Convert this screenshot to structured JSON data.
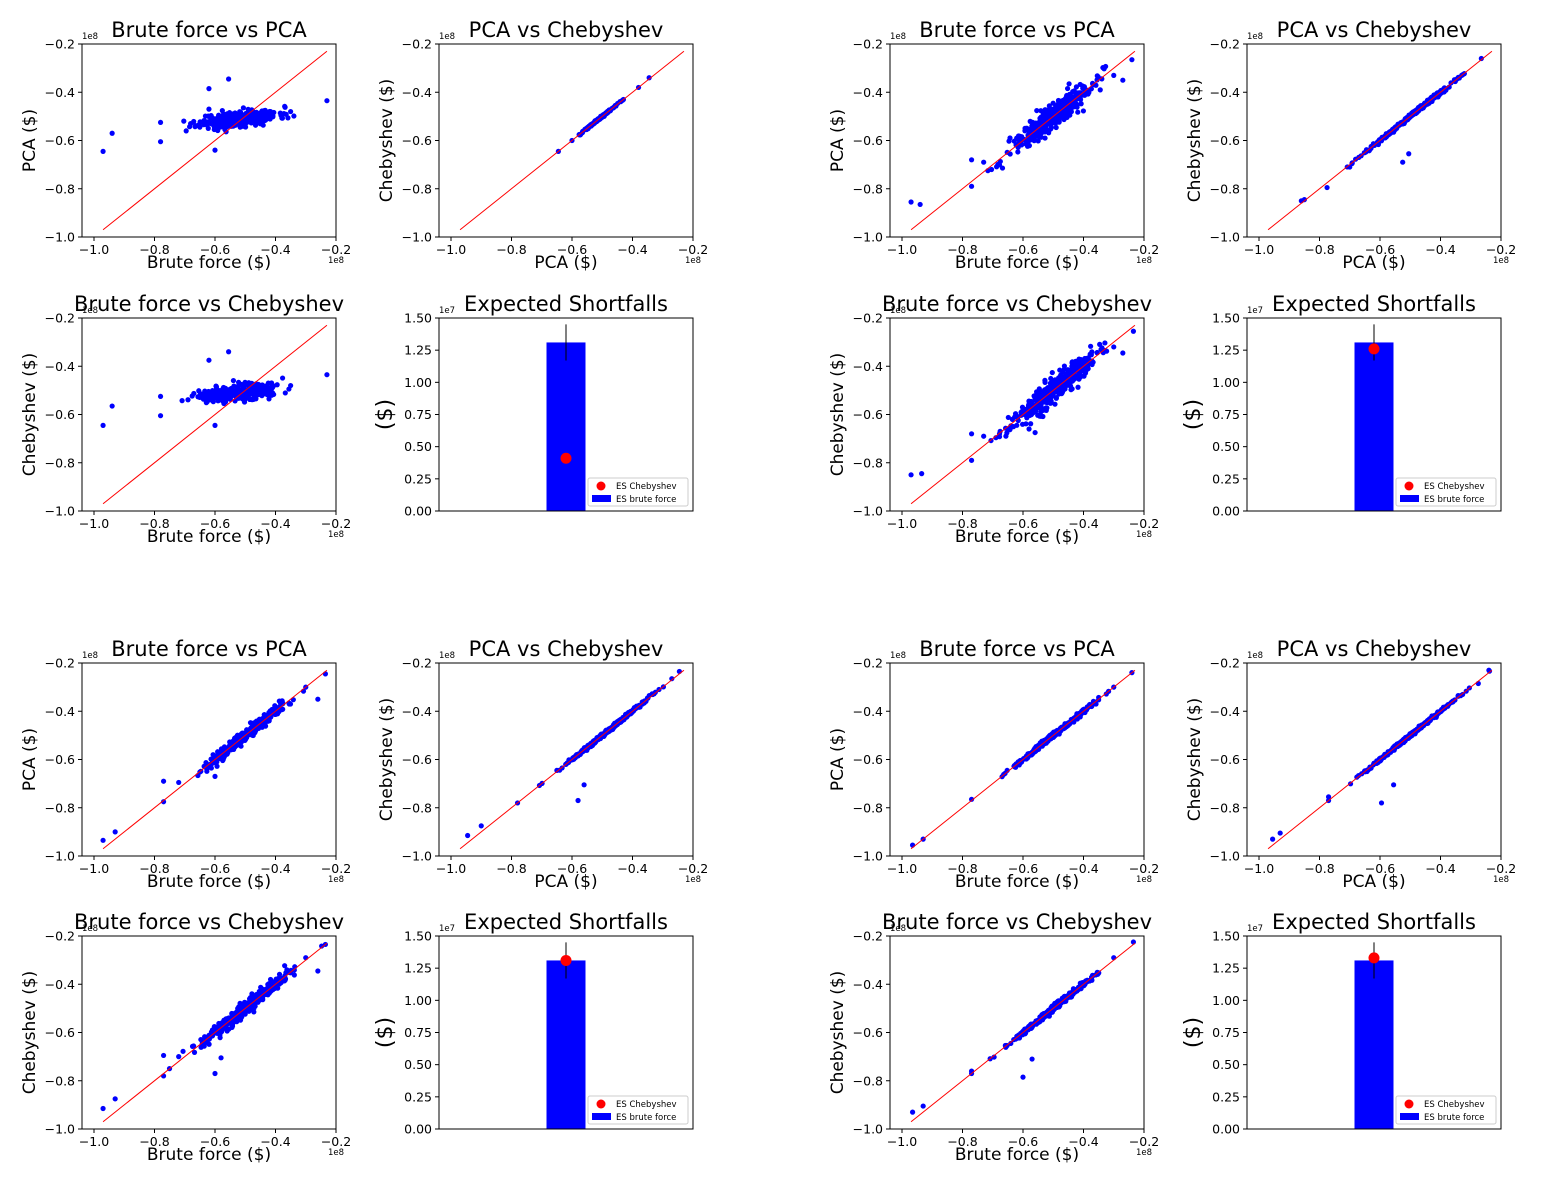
{
  "colors": {
    "scatter": "#0000ff",
    "diag": "#ff0000",
    "bar": "#0000ff",
    "dot": "#ff0000",
    "errbar": "#000000"
  },
  "chart_data": [
    {
      "type": "scatter",
      "panel": "g1-bf-pca",
      "title": "Brute force vs PCA",
      "xlabel": "Brute force ($)",
      "ylabel": "PCA ($)",
      "xlim": [
        -1.0,
        -0.2
      ],
      "ylim": [
        -1.0,
        -0.2
      ],
      "offset_x": "1e8",
      "offset_y": "1e8",
      "xticks": [
        "−1.0",
        "−0.8",
        "−0.6",
        "−0.4",
        "−0.2"
      ],
      "yticks": [
        "−1.0",
        "−0.8",
        "−0.6",
        "−0.4",
        "−0.2"
      ],
      "diagonal": [
        [
          -0.97,
          -0.97
        ],
        [
          -0.23,
          -0.23
        ]
      ],
      "cloud": {
        "center": [
          -0.52,
          -0.51
        ],
        "slope": 0.13,
        "spread_x": 0.065,
        "spread_y": 0.016,
        "n": 320,
        "seed": 11
      },
      "outliers": [
        [
          -0.97,
          -0.645
        ],
        [
          -0.94,
          -0.57
        ],
        [
          -0.78,
          -0.525
        ],
        [
          -0.78,
          -0.605
        ],
        [
          -0.62,
          -0.385
        ],
        [
          -0.555,
          -0.345
        ],
        [
          -0.6,
          -0.64
        ],
        [
          -0.23,
          -0.435
        ],
        [
          -0.35,
          -0.48
        ],
        [
          -0.62,
          -0.47
        ]
      ]
    },
    {
      "type": "scatter",
      "panel": "g1-pca-cheb",
      "title": "PCA vs Chebyshev",
      "xlabel": "PCA ($)",
      "ylabel": "Chebyshev ($)",
      "xlim": [
        -1.0,
        -0.2
      ],
      "ylim": [
        -1.0,
        -0.2
      ],
      "offset_x": "1e8",
      "offset_y": "1e8",
      "xticks": [
        "−1.0",
        "−0.8",
        "−0.6",
        "−0.4",
        "−0.2"
      ],
      "yticks": [
        "−1.0",
        "−0.8",
        "−0.6",
        "−0.4",
        "−0.2"
      ],
      "diagonal": [
        [
          -0.97,
          -0.97
        ],
        [
          -0.23,
          -0.23
        ]
      ],
      "cloud": {
        "center": [
          -0.51,
          -0.51
        ],
        "slope": 1.0,
        "spread_x": 0.025,
        "spread_y": 0.002,
        "n": 240,
        "seed": 12
      },
      "outliers": [
        [
          -0.645,
          -0.645
        ],
        [
          -0.575,
          -0.575
        ],
        [
          -0.38,
          -0.38
        ],
        [
          -0.345,
          -0.34
        ],
        [
          -0.43,
          -0.43
        ],
        [
          -0.6,
          -0.6
        ]
      ]
    },
    {
      "type": "scatter",
      "panel": "g1-bf-cheb",
      "title": "Brute force vs Chebyshev",
      "xlabel": "Brute force ($)",
      "ylabel": "Chebyshev ($)",
      "xlim": [
        -1.0,
        -0.2
      ],
      "ylim": [
        -1.0,
        -0.2
      ],
      "offset_x": "1e8",
      "offset_y": "1e8",
      "xticks": [
        "−1.0",
        "−0.8",
        "−0.6",
        "−0.4",
        "−0.2"
      ],
      "yticks": [
        "−1.0",
        "−0.8",
        "−0.6",
        "−0.4",
        "−0.2"
      ],
      "diagonal": [
        [
          -0.97,
          -0.97
        ],
        [
          -0.23,
          -0.23
        ]
      ],
      "cloud": {
        "center": [
          -0.52,
          -0.51
        ],
        "slope": 0.13,
        "spread_x": 0.065,
        "spread_y": 0.016,
        "n": 320,
        "seed": 13
      },
      "outliers": [
        [
          -0.97,
          -0.645
        ],
        [
          -0.94,
          -0.565
        ],
        [
          -0.78,
          -0.525
        ],
        [
          -0.78,
          -0.605
        ],
        [
          -0.62,
          -0.375
        ],
        [
          -0.555,
          -0.34
        ],
        [
          -0.6,
          -0.645
        ],
        [
          -0.23,
          -0.435
        ],
        [
          -0.35,
          -0.48
        ]
      ]
    },
    {
      "type": "bar",
      "panel": "g1-es",
      "title": "Expected Shortfalls",
      "xlabel": "",
      "ylabel": "($)",
      "ylim": [
        0,
        1.5
      ],
      "offset_y": "1e7",
      "yticks": [
        "0.00",
        "0.25",
        "0.50",
        "0.75",
        "1.00",
        "1.25",
        "1.50"
      ],
      "bar_value": 1.31,
      "error": [
        1.17,
        1.45
      ],
      "point_value": 0.41,
      "legend": [
        "ES Chebyshev",
        "ES brute force"
      ],
      "legend_loc": "lower-right"
    },
    {
      "type": "scatter",
      "panel": "g2-bf-pca",
      "title": "Brute force vs PCA",
      "xlabel": "Brute force ($)",
      "ylabel": "PCA ($)",
      "xlim": [
        -1.0,
        -0.2
      ],
      "ylim": [
        -1.0,
        -0.2
      ],
      "offset_x": "1e8",
      "offset_y": "1e8",
      "xticks": [
        "−1.0",
        "−0.8",
        "−0.6",
        "−0.4",
        "−0.2"
      ],
      "yticks": [
        "−1.0",
        "−0.8",
        "−0.6",
        "−0.4",
        "−0.2"
      ],
      "diagonal": [
        [
          -0.97,
          -0.97
        ],
        [
          -0.23,
          -0.23
        ]
      ],
      "cloud": {
        "center": [
          -0.5,
          -0.5
        ],
        "slope": 1.0,
        "spread_x": 0.07,
        "spread_y": 0.025,
        "n": 380,
        "seed": 21
      },
      "outliers": [
        [
          -0.97,
          -0.855
        ],
        [
          -0.94,
          -0.865
        ],
        [
          -0.77,
          -0.79
        ],
        [
          -0.77,
          -0.68
        ],
        [
          -0.73,
          -0.69
        ],
        [
          -0.24,
          -0.265
        ],
        [
          -0.3,
          -0.33
        ],
        [
          -0.27,
          -0.35
        ]
      ]
    },
    {
      "type": "scatter",
      "panel": "g2-pca-cheb",
      "title": "PCA vs Chebyshev",
      "xlabel": "PCA ($)",
      "ylabel": "Chebyshev ($)",
      "xlim": [
        -1.0,
        -0.2
      ],
      "ylim": [
        -1.0,
        -0.2
      ],
      "offset_x": "1e8",
      "offset_y": "1e8",
      "xticks": [
        "−1.0",
        "−0.8",
        "−0.6",
        "−0.4",
        "−0.2"
      ],
      "yticks": [
        "−1.0",
        "−0.8",
        "−0.6",
        "−0.4",
        "−0.2"
      ],
      "diagonal": [
        [
          -0.97,
          -0.97
        ],
        [
          -0.23,
          -0.23
        ]
      ],
      "cloud": {
        "center": [
          -0.5,
          -0.5
        ],
        "slope": 1.0,
        "spread_x": 0.07,
        "spread_y": 0.004,
        "n": 320,
        "seed": 22
      },
      "outliers": [
        [
          -0.86,
          -0.85
        ],
        [
          -0.85,
          -0.845
        ],
        [
          -0.775,
          -0.795
        ],
        [
          -0.525,
          -0.69
        ],
        [
          -0.505,
          -0.655
        ],
        [
          -0.265,
          -0.26
        ],
        [
          -0.33,
          -0.33
        ],
        [
          -0.67,
          -0.67
        ],
        [
          -0.7,
          -0.71
        ]
      ]
    },
    {
      "type": "scatter",
      "panel": "g2-bf-cheb",
      "title": "Brute force vs Chebyshev",
      "xlabel": "Brute force ($)",
      "ylabel": "Chebyshev ($)",
      "xlim": [
        -1.0,
        -0.2
      ],
      "ylim": [
        -1.0,
        -0.2
      ],
      "offset_x": "1e8",
      "offset_y": "1e8",
      "xticks": [
        "−1.0",
        "−0.8",
        "−0.6",
        "−0.4",
        "−0.2"
      ],
      "yticks": [
        "−1.0",
        "−0.8",
        "−0.6",
        "−0.4",
        "−0.2"
      ],
      "diagonal": [
        [
          -0.97,
          -0.97
        ],
        [
          -0.23,
          -0.23
        ]
      ],
      "cloud": {
        "center": [
          -0.5,
          -0.5
        ],
        "slope": 1.0,
        "spread_x": 0.07,
        "spread_y": 0.025,
        "n": 380,
        "seed": 23
      },
      "outliers": [
        [
          -0.97,
          -0.85
        ],
        [
          -0.935,
          -0.845
        ],
        [
          -0.77,
          -0.79
        ],
        [
          -0.77,
          -0.68
        ],
        [
          -0.73,
          -0.69
        ],
        [
          -0.235,
          -0.255
        ],
        [
          -0.3,
          -0.32
        ],
        [
          -0.27,
          -0.345
        ],
        [
          -0.58,
          -0.66
        ],
        [
          -0.56,
          -0.675
        ]
      ]
    },
    {
      "type": "bar",
      "panel": "g2-es",
      "title": "Expected Shortfalls",
      "xlabel": "",
      "ylabel": "($)",
      "ylim": [
        0,
        1.5
      ],
      "offset_y": "1e7",
      "yticks": [
        "0.00",
        "0.25",
        "0.50",
        "0.75",
        "1.00",
        "1.25",
        "1.50"
      ],
      "bar_value": 1.31,
      "error": [
        1.17,
        1.45
      ],
      "point_value": 1.26,
      "legend": [
        "ES Chebyshev",
        "ES brute force"
      ],
      "legend_loc": "lower-right"
    },
    {
      "type": "scatter",
      "panel": "g3-bf-pca",
      "title": "Brute force vs PCA",
      "xlabel": "Brute force ($)",
      "ylabel": "PCA ($)",
      "xlim": [
        -1.0,
        -0.2
      ],
      "ylim": [
        -1.0,
        -0.2
      ],
      "offset_x": "1e8",
      "offset_y": "1e8",
      "xticks": [
        "−1.0",
        "−0.8",
        "−0.6",
        "−0.4",
        "−0.2"
      ],
      "yticks": [
        "−1.0",
        "−0.8",
        "−0.6",
        "−0.4",
        "−0.2"
      ],
      "diagonal": [
        [
          -0.97,
          -0.97
        ],
        [
          -0.23,
          -0.23
        ]
      ],
      "cloud": {
        "center": [
          -0.5,
          -0.5
        ],
        "slope": 1.0,
        "spread_x": 0.07,
        "spread_y": 0.012,
        "n": 340,
        "seed": 31
      },
      "outliers": [
        [
          -0.97,
          -0.935
        ],
        [
          -0.93,
          -0.9
        ],
        [
          -0.77,
          -0.775
        ],
        [
          -0.77,
          -0.69
        ],
        [
          -0.72,
          -0.695
        ],
        [
          -0.6,
          -0.67
        ],
        [
          -0.235,
          -0.245
        ],
        [
          -0.26,
          -0.35
        ],
        [
          -0.3,
          -0.3
        ]
      ]
    },
    {
      "type": "scatter",
      "panel": "g3-pca-cheb",
      "title": "PCA vs Chebyshev",
      "xlabel": "PCA ($)",
      "ylabel": "Chebyshev ($)",
      "xlim": [
        -1.0,
        -0.2
      ],
      "ylim": [
        -1.0,
        -0.2
      ],
      "offset_x": "1e8",
      "offset_y": "1e8",
      "xticks": [
        "−1.0",
        "−0.8",
        "−0.6",
        "−0.4",
        "−0.2"
      ],
      "yticks": [
        "−1.0",
        "−0.8",
        "−0.6",
        "−0.4",
        "−0.2"
      ],
      "diagonal": [
        [
          -0.97,
          -0.97
        ],
        [
          -0.23,
          -0.23
        ]
      ],
      "cloud": {
        "center": [
          -0.5,
          -0.5
        ],
        "slope": 1.0,
        "spread_x": 0.075,
        "spread_y": 0.004,
        "n": 320,
        "seed": 32
      },
      "outliers": [
        [
          -0.945,
          -0.915
        ],
        [
          -0.9,
          -0.875
        ],
        [
          -0.78,
          -0.78
        ],
        [
          -0.58,
          -0.77
        ],
        [
          -0.56,
          -0.705
        ],
        [
          -0.245,
          -0.235
        ],
        [
          -0.27,
          -0.265
        ],
        [
          -0.65,
          -0.645
        ]
      ]
    },
    {
      "type": "scatter",
      "panel": "g3-bf-cheb",
      "title": "Brute force vs Chebyshev",
      "xlabel": "Brute force ($)",
      "ylabel": "Chebyshev ($)",
      "xlim": [
        -1.0,
        -0.2
      ],
      "ylim": [
        -1.0,
        -0.2
      ],
      "offset_x": "1e8",
      "offset_y": "1e8",
      "xticks": [
        "−1.0",
        "−0.8",
        "−0.6",
        "−0.4",
        "−0.2"
      ],
      "yticks": [
        "−1.0",
        "−0.8",
        "−0.6",
        "−0.4",
        "−0.2"
      ],
      "diagonal": [
        [
          -0.97,
          -0.97
        ],
        [
          -0.23,
          -0.23
        ]
      ],
      "cloud": {
        "center": [
          -0.5,
          -0.5
        ],
        "slope": 1.0,
        "spread_x": 0.07,
        "spread_y": 0.014,
        "n": 340,
        "seed": 33
      },
      "outliers": [
        [
          -0.97,
          -0.915
        ],
        [
          -0.93,
          -0.875
        ],
        [
          -0.77,
          -0.78
        ],
        [
          -0.77,
          -0.695
        ],
        [
          -0.72,
          -0.7
        ],
        [
          -0.6,
          -0.77
        ],
        [
          -0.58,
          -0.705
        ],
        [
          -0.235,
          -0.235
        ],
        [
          -0.26,
          -0.345
        ],
        [
          -0.3,
          -0.29
        ]
      ]
    },
    {
      "type": "bar",
      "panel": "g3-es",
      "title": "Expected Shortfalls",
      "xlabel": "",
      "ylabel": "($)",
      "ylim": [
        0,
        1.5
      ],
      "offset_y": "1e7",
      "yticks": [
        "0.00",
        "0.25",
        "0.50",
        "0.75",
        "1.00",
        "1.25",
        "1.50"
      ],
      "bar_value": 1.31,
      "error": [
        1.17,
        1.45
      ],
      "point_value": 1.31,
      "legend": [
        "ES Chebyshev",
        "ES brute force"
      ],
      "legend_loc": "lower-right"
    },
    {
      "type": "scatter",
      "panel": "g4-bf-pca",
      "title": "Brute force vs PCA",
      "xlabel": "Brute force ($)",
      "ylabel": "PCA ($)",
      "xlim": [
        -1.0,
        -0.2
      ],
      "ylim": [
        -1.0,
        -0.2
      ],
      "offset_x": "1e8",
      "offset_y": "1e8",
      "xticks": [
        "−1.0",
        "−0.8",
        "−0.6",
        "−0.4",
        "−0.2"
      ],
      "yticks": [
        "−1.0",
        "−0.8",
        "−0.6",
        "−0.4",
        "−0.2"
      ],
      "diagonal": [
        [
          -0.97,
          -0.97
        ],
        [
          -0.23,
          -0.23
        ]
      ],
      "cloud": {
        "center": [
          -0.5,
          -0.5
        ],
        "slope": 1.0,
        "spread_x": 0.07,
        "spread_y": 0.005,
        "n": 320,
        "seed": 41
      },
      "outliers": [
        [
          -0.965,
          -0.955
        ],
        [
          -0.93,
          -0.93
        ],
        [
          -0.77,
          -0.765
        ],
        [
          -0.24,
          -0.24
        ],
        [
          -0.3,
          -0.3
        ],
        [
          -0.6,
          -0.6
        ]
      ]
    },
    {
      "type": "scatter",
      "panel": "g4-pca-cheb",
      "title": "PCA vs Chebyshev",
      "xlabel": "PCA ($)",
      "ylabel": "Chebyshev ($)",
      "xlim": [
        -1.0,
        -0.2
      ],
      "ylim": [
        -1.0,
        -0.2
      ],
      "offset_x": "1e8",
      "offset_y": "1e8",
      "xticks": [
        "−1.0",
        "−0.8",
        "−0.6",
        "−0.4",
        "−0.2"
      ],
      "yticks": [
        "−1.0",
        "−0.8",
        "−0.6",
        "−0.4",
        "−0.2"
      ],
      "diagonal": [
        [
          -0.97,
          -0.97
        ],
        [
          -0.23,
          -0.23
        ]
      ],
      "cloud": {
        "center": [
          -0.5,
          -0.5
        ],
        "slope": 1.0,
        "spread_x": 0.075,
        "spread_y": 0.004,
        "n": 320,
        "seed": 42
      },
      "outliers": [
        [
          -0.955,
          -0.93
        ],
        [
          -0.93,
          -0.905
        ],
        [
          -0.77,
          -0.755
        ],
        [
          -0.77,
          -0.77
        ],
        [
          -0.595,
          -0.78
        ],
        [
          -0.555,
          -0.705
        ],
        [
          -0.24,
          -0.23
        ],
        [
          -0.275,
          -0.285
        ]
      ]
    },
    {
      "type": "scatter",
      "panel": "g4-bf-cheb",
      "title": "Brute force vs Chebyshev",
      "xlabel": "Brute force ($)",
      "ylabel": "Chebyshev ($)",
      "xlim": [
        -1.0,
        -0.2
      ],
      "ylim": [
        -1.0,
        -0.2
      ],
      "offset_x": "1e8",
      "offset_y": "1e8",
      "xticks": [
        "−1.0",
        "−0.8",
        "−0.6",
        "−0.4",
        "−0.2"
      ],
      "yticks": [
        "−1.0",
        "−0.8",
        "−0.6",
        "−0.4",
        "−0.2"
      ],
      "diagonal": [
        [
          -0.97,
          -0.97
        ],
        [
          -0.23,
          -0.23
        ]
      ],
      "cloud": {
        "center": [
          -0.5,
          -0.5
        ],
        "slope": 1.0,
        "spread_x": 0.07,
        "spread_y": 0.006,
        "n": 320,
        "seed": 43
      },
      "outliers": [
        [
          -0.965,
          -0.93
        ],
        [
          -0.93,
          -0.905
        ],
        [
          -0.77,
          -0.76
        ],
        [
          -0.77,
          -0.77
        ],
        [
          -0.6,
          -0.785
        ],
        [
          -0.57,
          -0.71
        ],
        [
          -0.235,
          -0.225
        ],
        [
          -0.3,
          -0.29
        ]
      ]
    },
    {
      "type": "bar",
      "panel": "g4-es",
      "title": "Expected Shortfalls",
      "xlabel": "",
      "ylabel": "($)",
      "ylim": [
        0,
        1.5
      ],
      "offset_y": "1e7",
      "yticks": [
        "0.00",
        "0.25",
        "0.50",
        "0.75",
        "1.00",
        "1.25",
        "1.50"
      ],
      "bar_value": 1.31,
      "error": [
        1.17,
        1.45
      ],
      "point_value": 1.33,
      "legend": [
        "ES Chebyshev",
        "ES brute force"
      ],
      "legend_loc": "lower-right"
    }
  ]
}
